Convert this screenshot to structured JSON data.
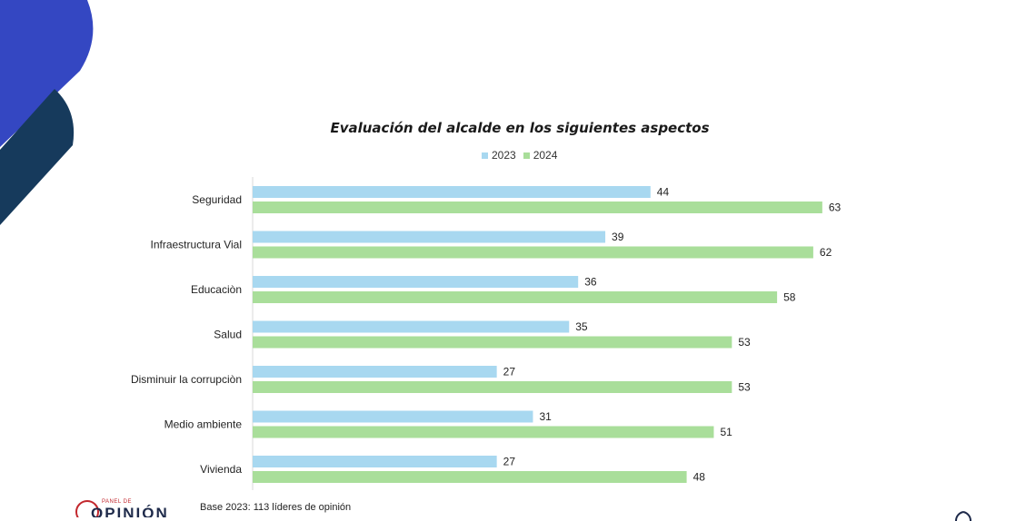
{
  "chart_data": {
    "type": "bar",
    "orientation": "horizontal",
    "title": "Evaluación del alcalde en los siguientes aspectos",
    "categories": [
      "Seguridad",
      "Infraestructura Vial",
      "Educaciòn",
      "Salud",
      "Disminuir la corrupciòn",
      "Medio ambiente",
      "Vivienda"
    ],
    "series": [
      {
        "name": "2023",
        "color": "#a8d8f0",
        "values": [
          44,
          39,
          36,
          35,
          27,
          31,
          27
        ]
      },
      {
        "name": "2024",
        "color": "#a9de9a",
        "values": [
          63,
          62,
          58,
          53,
          53,
          51,
          48
        ]
      }
    ],
    "xlim": [
      0,
      100
    ],
    "legend_position": "top-center",
    "grid": false
  },
  "footnote": "Base 2023: 113 líderes de opinión",
  "logos": {
    "left_small": "PANEL DE",
    "left_big": "OPINIÓN",
    "right_icon": "cd-logo-icon",
    "accent_red": "#c2272d",
    "navy": "#1e2a4a",
    "royal_blue": "#3447c2",
    "deco_dark": "#163a5c"
  }
}
